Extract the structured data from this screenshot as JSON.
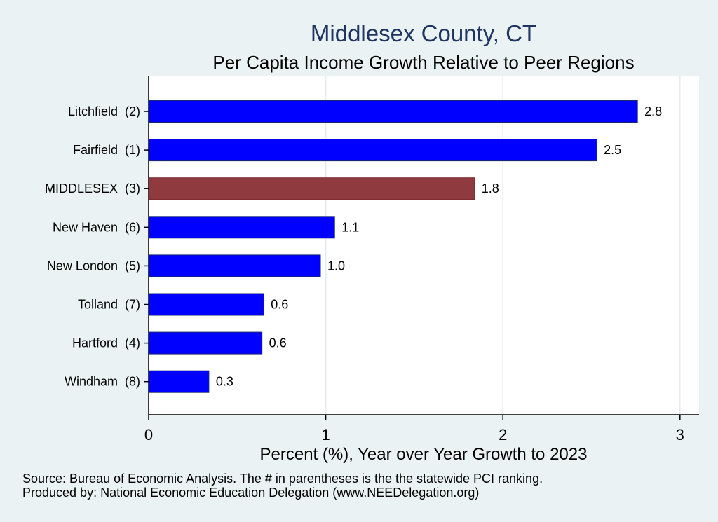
{
  "chart_data": {
    "type": "bar",
    "orientation": "horizontal",
    "title": "Middlesex County, CT",
    "subtitle": "Per Capita Income Growth Relative to Peer Regions",
    "xlabel": "Percent (%), Year over Year Growth to 2023",
    "categories": [
      "Litchfield  (2)",
      "Fairfield  (1)",
      "MIDDLESEX  (3)",
      "New Haven  (6)",
      "New London  (5)",
      "Tolland  (7)",
      "Hartford  (4)",
      "Windham  (8)"
    ],
    "values": [
      2.76,
      2.53,
      1.84,
      1.05,
      0.97,
      0.65,
      0.64,
      0.34
    ],
    "value_labels": [
      "2.8",
      "2.5",
      "1.8",
      "1.1",
      "1.0",
      "0.6",
      "0.6",
      "0.3"
    ],
    "highlight_index": 2,
    "xlim": [
      0,
      3.1
    ],
    "xticks": [
      0,
      1,
      2,
      3
    ],
    "xtick_labels": [
      "0",
      "1",
      "2",
      "3"
    ],
    "grid": "vertical",
    "colors": {
      "bar": "#0000ff",
      "bar_outline": "#1a2a6e",
      "highlight": "#8f3a3f",
      "highlight_outline": "#7a2a30",
      "title": "#1e3462",
      "plot_bg": "#ffffff",
      "page_bg": "#eaf2f3",
      "grid": "#e3ebee"
    }
  },
  "notes": {
    "source": "Source: Bureau of Economic Analysis. The # in parentheses is the the statewide PCI ranking.",
    "producer": "Produced by: National Economic Education Delegation (www.NEEDelegation.org)"
  }
}
